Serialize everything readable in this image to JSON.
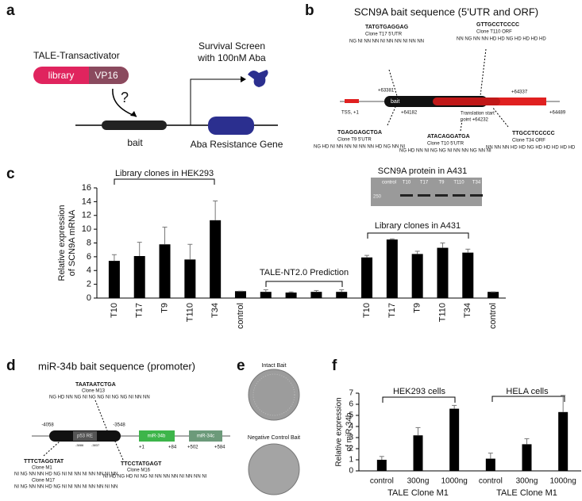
{
  "panels": {
    "a": "a",
    "b": "b",
    "c": "c",
    "d": "d",
    "e": "e",
    "f": "f"
  },
  "panel_a": {
    "tale": "TALE-Transactivator",
    "library": "library",
    "vp16": "VP16",
    "question": "?",
    "screen": [
      "Survival Screen",
      "with 100nM Aba"
    ],
    "bait": "bait",
    "gene": "Aba Resistance Gene"
  },
  "panel_b": {
    "title": "SCN9A bait sequence (5'UTR and ORF)",
    "t17": [
      "TATGTGAGGAG",
      "Clone T17  5'UTR",
      "NG NI NN NN NI NN NN NI NN NN"
    ],
    "t110": [
      "GTTGCCTCCCC",
      "Clone T110 ORF",
      "NN NG NN NN HD HD NG HD HD HD HD"
    ],
    "t9": [
      "TGAGGAGCTGA",
      "Clone T9 5'UTR",
      "NG HD NI NN NN NI NN NN HD NG NN NI"
    ],
    "t10": [
      "ATACAGGATGA",
      "Clone T10 5'UTR",
      "NG HD NN NI NG NG NI NN NN NG NN NI"
    ],
    "t34": [
      "TTGCCTCCCCC",
      "Clone T34 ORF",
      "NN NN NN HD HD NG HD HD HD HD HD"
    ],
    "bait": "bait",
    "tss": "TSS, +1",
    "p1": "+63381",
    "p2": "+64337",
    "p3": "+64182",
    "p4": "+64489",
    "start": [
      "Translation start",
      "point +64232"
    ]
  },
  "panel_d": {
    "title": "miR-34b bait sequence (promoter)",
    "m13": [
      "TAATAATCTGA",
      "Clone M13",
      "NG HD NN NG NI NG NG NI NG NG NI NN NN"
    ],
    "m1": [
      "TTTCTAGGTAT",
      "Clone M1",
      "NI NG NN NN HD NG NI NI NN NI NN NN NI NN",
      "Clone M17",
      "NI NG NN NN HD NG NI NI NN NI NN NN NI NN"
    ],
    "m16": [
      "TTCCTATGAGT",
      "Clone M16",
      "NI HD NG HD NI NG NI NN NN NN NI NN NN NI"
    ],
    "left": "-4058",
    "right": "-3548",
    "re": "p53 RE",
    "re_l": "-3886",
    "re_r": "-3837",
    "mir34b": "miR-34b",
    "b1": "+1",
    "b2": "+84",
    "mir34c": "miR-34c",
    "c1": "+502",
    "c2": "+584"
  },
  "panel_e": {
    "intact": "Intact Bait",
    "negative": "Negative Control Bait"
  },
  "chart_data": [
    {
      "type": "bar",
      "y_label": [
        "Relative expression",
        "of SCN9A mRNA"
      ],
      "categories": [
        "T10",
        "T17",
        "T9",
        "T110",
        "T34",
        "control",
        null,
        null,
        null,
        null,
        "T10",
        "T17",
        "T9",
        "T110",
        "T34",
        "control"
      ],
      "values": [
        5.4,
        6.1,
        7.8,
        5.6,
        11.3,
        1.0,
        0.9,
        0.8,
        0.9,
        0.9,
        5.9,
        8.5,
        6.4,
        7.3,
        6.6,
        0.9
      ],
      "errors": [
        0.9,
        2.0,
        2.5,
        2.2,
        2.8,
        0,
        0.3,
        0.1,
        0.2,
        0.3,
        0.3,
        0.1,
        0.4,
        0.7,
        0.5,
        0
      ],
      "color": "#000000",
      "ylim": [
        0,
        16
      ],
      "yticks": [
        0,
        2,
        4,
        6,
        8,
        10,
        12,
        14,
        16
      ],
      "annotations": [
        "Library clones in HEK293",
        "TALE-NT2.0 Prediction",
        "Library clones in A431"
      ],
      "inset": {
        "title": "SCN9A protein in A431",
        "lanes": [
          "control",
          "T10",
          "T17",
          "T9",
          "T110",
          "T34"
        ],
        "marker": "250"
      }
    },
    {
      "type": "bar",
      "y_label": [
        "Relative expression",
        "of miR-34b"
      ],
      "categories": [
        "control",
        "300ng",
        "1000ng",
        "control",
        "300ng",
        "1000ng"
      ],
      "values": [
        1.0,
        3.2,
        5.6,
        1.1,
        2.4,
        5.3
      ],
      "errors": [
        0.3,
        0.7,
        0.3,
        0.5,
        0.5,
        1.5
      ],
      "color": "#000000",
      "ylim": [
        0,
        7
      ],
      "yticks": [
        0,
        1,
        2,
        3,
        4,
        5,
        6,
        7
      ],
      "annotations": [
        "HEK293 cells",
        "HELA cells"
      ],
      "group_labels": [
        "TALE Clone M1",
        "TALE Clone M1"
      ]
    }
  ]
}
